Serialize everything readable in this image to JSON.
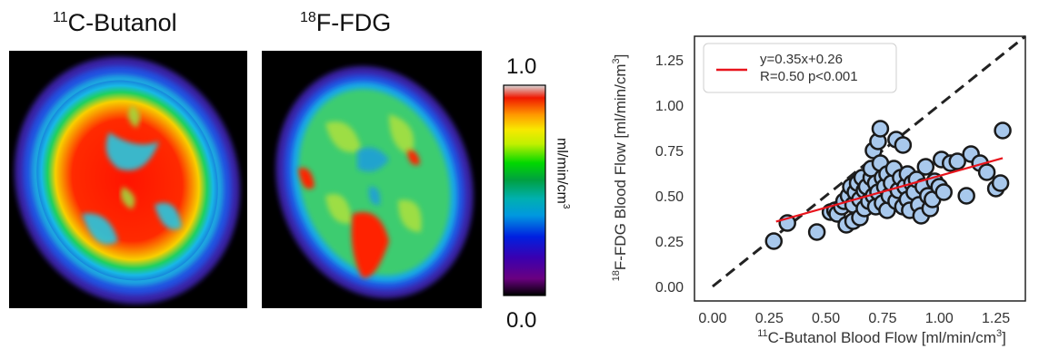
{
  "panels": {
    "left": {
      "isotope": "11",
      "name": "C-Butanol"
    },
    "right": {
      "isotope": "18",
      "name": "F-FDG"
    }
  },
  "colorbar": {
    "max_label": "1.0",
    "min_label": "0.0",
    "unit_base": "ml/min/cm",
    "unit_exp": "3",
    "colormap": "spectral-nipy"
  },
  "chart_data": {
    "type": "scatter",
    "xlabel_isotope": "11",
    "xlabel_text": "C-Butanol Blood Flow [ml/min/cm",
    "xlabel_exp": "3",
    "xlabel_close": "]",
    "ylabel_isotope": "18",
    "ylabel_text": "F-FDG Blood Flow [ml/min/cm",
    "ylabel_exp": "3",
    "ylabel_close": "]",
    "xlim": [
      -0.08,
      1.38
    ],
    "ylim": [
      -0.08,
      1.38
    ],
    "xticks": [
      "0.00",
      "0.25",
      "0.50",
      "0.75",
      "1.00",
      "1.25"
    ],
    "yticks": [
      "0.00",
      "0.25",
      "0.50",
      "0.75",
      "1.00",
      "1.25"
    ],
    "tick_values": [
      0,
      0.25,
      0.5,
      0.75,
      1.0,
      1.25
    ],
    "grid": false,
    "legend_position": "top-left",
    "identity_line": true,
    "fit": {
      "slope": 0.35,
      "intercept": 0.26,
      "x_range": [
        0.28,
        1.28
      ],
      "color": "#e8141c"
    },
    "legend_line1": "y=0.35x+0.26",
    "legend_line2": "R=0.50 p<0.001",
    "marker_color": "#a8c8ec",
    "marker_edge": "#1a1a1a",
    "points": [
      [
        0.27,
        0.25
      ],
      [
        0.33,
        0.35
      ],
      [
        0.46,
        0.3
      ],
      [
        0.52,
        0.41
      ],
      [
        0.54,
        0.42
      ],
      [
        0.55,
        0.4
      ],
      [
        0.57,
        0.44
      ],
      [
        0.58,
        0.47
      ],
      [
        0.59,
        0.34
      ],
      [
        0.6,
        0.5
      ],
      [
        0.61,
        0.55
      ],
      [
        0.62,
        0.36
      ],
      [
        0.62,
        0.45
      ],
      [
        0.63,
        0.52
      ],
      [
        0.64,
        0.57
      ],
      [
        0.65,
        0.38
      ],
      [
        0.65,
        0.48
      ],
      [
        0.66,
        0.6
      ],
      [
        0.67,
        0.43
      ],
      [
        0.67,
        0.53
      ],
      [
        0.68,
        0.55
      ],
      [
        0.69,
        0.47
      ],
      [
        0.7,
        0.6
      ],
      [
        0.7,
        0.65
      ],
      [
        0.71,
        0.5
      ],
      [
        0.71,
        0.75
      ],
      [
        0.72,
        0.44
      ],
      [
        0.72,
        0.57
      ],
      [
        0.73,
        0.8
      ],
      [
        0.73,
        0.52
      ],
      [
        0.74,
        0.68
      ],
      [
        0.74,
        0.87
      ],
      [
        0.75,
        0.6
      ],
      [
        0.75,
        0.46
      ],
      [
        0.76,
        0.55
      ],
      [
        0.77,
        0.42
      ],
      [
        0.77,
        0.62
      ],
      [
        0.78,
        0.5
      ],
      [
        0.79,
        0.57
      ],
      [
        0.8,
        0.65
      ],
      [
        0.81,
        0.81
      ],
      [
        0.81,
        0.47
      ],
      [
        0.82,
        0.53
      ],
      [
        0.83,
        0.6
      ],
      [
        0.84,
        0.44
      ],
      [
        0.84,
        0.78
      ],
      [
        0.85,
        0.55
      ],
      [
        0.86,
        0.62
      ],
      [
        0.86,
        0.48
      ],
      [
        0.87,
        0.42
      ],
      [
        0.88,
        0.57
      ],
      [
        0.89,
        0.52
      ],
      [
        0.9,
        0.59
      ],
      [
        0.91,
        0.45
      ],
      [
        0.92,
        0.39
      ],
      [
        0.93,
        0.55
      ],
      [
        0.94,
        0.66
      ],
      [
        0.95,
        0.5
      ],
      [
        0.96,
        0.43
      ],
      [
        0.97,
        0.48
      ],
      [
        0.98,
        0.58
      ],
      [
        1.0,
        0.55
      ],
      [
        1.01,
        0.7
      ],
      [
        1.02,
        0.52
      ],
      [
        1.05,
        0.68
      ],
      [
        1.08,
        0.69
      ],
      [
        1.12,
        0.5
      ],
      [
        1.14,
        0.73
      ],
      [
        1.18,
        0.68
      ],
      [
        1.21,
        0.63
      ],
      [
        1.25,
        0.54
      ],
      [
        1.27,
        0.57
      ],
      [
        1.28,
        0.86
      ]
    ]
  }
}
